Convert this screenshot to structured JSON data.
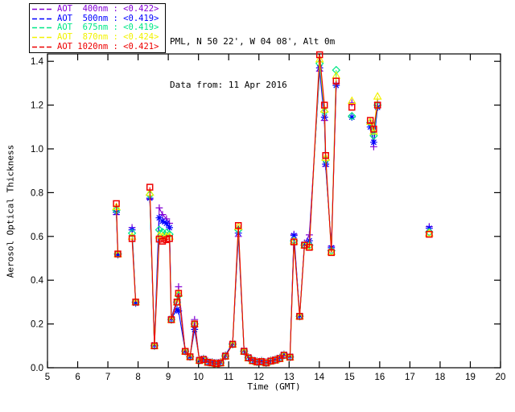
{
  "header": {
    "line1": "PML, N 50 22', W 04 08', Alt 0m",
    "line2": "Data from: 11 Apr 2016"
  },
  "chart_data": {
    "type": "line",
    "title": "PML, N 50 22', W 04 08', Alt 0m",
    "subtitle": "Data from: 11 Apr 2016",
    "xlabel": "Time (GMT)",
    "ylabel": "Aerosol Optical Thickness",
    "xlim": [
      5,
      20
    ],
    "ylim": [
      0.0,
      1.4
    ],
    "x_ticks": [
      5,
      6,
      7,
      8,
      9,
      10,
      11,
      12,
      13,
      14,
      15,
      16,
      17,
      18,
      19,
      20
    ],
    "y_ticks": [
      0.0,
      0.2,
      0.4,
      0.6,
      0.8,
      1.0,
      1.2,
      1.4
    ],
    "grid": false,
    "legend_position": "outside-top-left",
    "line_break_gap_hours": 0.45,
    "x_hours_gmt": [
      7.28,
      7.33,
      7.8,
      7.92,
      8.39,
      8.54,
      8.7,
      8.81,
      8.94,
      9.04,
      9.1,
      9.29,
      9.34,
      9.56,
      9.72,
      9.87,
      10.03,
      10.17,
      10.31,
      10.45,
      10.59,
      10.73,
      10.89,
      11.13,
      11.32,
      11.51,
      11.65,
      11.79,
      11.94,
      12.09,
      12.24,
      12.39,
      12.54,
      12.69,
      12.83,
      13.03,
      13.16,
      13.35,
      13.51,
      13.67,
      14.01,
      14.17,
      14.21,
      14.4,
      14.56,
      15.08,
      15.69,
      15.8,
      15.93,
      17.64
    ],
    "series": [
      {
        "name": "AOT 400nm",
        "legend_label": "AOT  400nm : <0.422>",
        "mean_label": "<0.422>",
        "color": "#8400D6",
        "marker": "plus",
        "values": [
          0.7,
          0.515,
          0.64,
          0.3,
          0.77,
          0.1,
          0.73,
          0.7,
          0.68,
          0.66,
          0.23,
          0.31,
          0.37,
          0.08,
          0.052,
          0.22,
          0.035,
          0.04,
          0.027,
          0.024,
          0.02,
          0.024,
          0.055,
          0.11,
          0.6,
          0.077,
          0.047,
          0.034,
          0.028,
          0.03,
          0.024,
          0.032,
          0.037,
          0.044,
          0.059,
          0.05,
          0.61,
          0.24,
          0.57,
          0.607,
          1.355,
          1.13,
          0.92,
          0.555,
          1.3,
          1.21,
          1.12,
          1.01,
          1.21,
          0.645
        ]
      },
      {
        "name": "AOT 500nm",
        "legend_label": "AOT  500nm : <0.419>",
        "mean_label": "<0.419>",
        "color": "#0000FF",
        "marker": "asterisk",
        "values": [
          0.71,
          0.518,
          0.63,
          0.295,
          0.775,
          0.105,
          0.685,
          0.67,
          0.66,
          0.64,
          0.225,
          0.265,
          0.26,
          0.077,
          0.051,
          0.175,
          0.038,
          0.043,
          0.03,
          0.027,
          0.023,
          0.027,
          0.058,
          0.112,
          0.615,
          0.08,
          0.05,
          0.037,
          0.031,
          0.033,
          0.027,
          0.035,
          0.04,
          0.047,
          0.062,
          0.053,
          0.604,
          0.238,
          0.565,
          0.58,
          1.37,
          1.145,
          0.93,
          0.548,
          1.29,
          1.145,
          1.1,
          1.03,
          1.19,
          0.637
        ]
      },
      {
        "name": "AOT 675nm",
        "legend_label": "AOT  675nm : <0.419>",
        "mean_label": "<0.419>",
        "color": "#00E887",
        "marker": "diamond",
        "values": [
          0.72,
          0.52,
          0.615,
          0.3,
          0.79,
          0.1,
          0.63,
          0.62,
          0.617,
          0.61,
          0.22,
          0.3,
          0.33,
          0.075,
          0.05,
          0.2,
          0.033,
          0.038,
          0.025,
          0.022,
          0.018,
          0.022,
          0.053,
          0.107,
          0.63,
          0.075,
          0.045,
          0.032,
          0.026,
          0.028,
          0.022,
          0.03,
          0.035,
          0.042,
          0.057,
          0.048,
          0.58,
          0.235,
          0.56,
          0.56,
          1.39,
          1.17,
          0.95,
          0.535,
          1.36,
          1.15,
          1.12,
          1.06,
          1.2,
          0.62
        ]
      },
      {
        "name": "AOT 870nm",
        "legend_label": "AOT  870nm : <0.424>",
        "mean_label": "<0.424>",
        "color": "#F2F200",
        "marker": "triangle",
        "values": [
          0.735,
          0.52,
          0.6,
          0.3,
          0.8,
          0.1,
          0.605,
          0.6,
          0.6,
          0.6,
          0.22,
          0.3,
          0.34,
          0.075,
          0.05,
          0.2,
          0.033,
          0.038,
          0.025,
          0.022,
          0.018,
          0.022,
          0.053,
          0.107,
          0.645,
          0.075,
          0.045,
          0.032,
          0.026,
          0.028,
          0.022,
          0.03,
          0.035,
          0.042,
          0.057,
          0.048,
          0.578,
          0.235,
          0.56,
          0.553,
          1.41,
          1.18,
          0.96,
          0.53,
          1.335,
          1.22,
          1.125,
          1.08,
          1.24,
          0.615
        ]
      },
      {
        "name": "AOT 1020nm",
        "legend_label": "AOT 1020nm : <0.421>",
        "mean_label": "<0.421>",
        "color": "#EE0000",
        "marker": "square",
        "values": [
          0.75,
          0.52,
          0.59,
          0.3,
          0.825,
          0.1,
          0.588,
          0.578,
          0.585,
          0.59,
          0.22,
          0.3,
          0.34,
          0.075,
          0.05,
          0.2,
          0.033,
          0.038,
          0.025,
          0.022,
          0.018,
          0.022,
          0.053,
          0.107,
          0.65,
          0.075,
          0.045,
          0.032,
          0.026,
          0.028,
          0.022,
          0.03,
          0.035,
          0.042,
          0.057,
          0.048,
          0.575,
          0.235,
          0.56,
          0.55,
          1.43,
          1.2,
          0.97,
          0.526,
          1.31,
          1.19,
          1.13,
          1.09,
          1.2,
          0.61
        ]
      }
    ]
  }
}
